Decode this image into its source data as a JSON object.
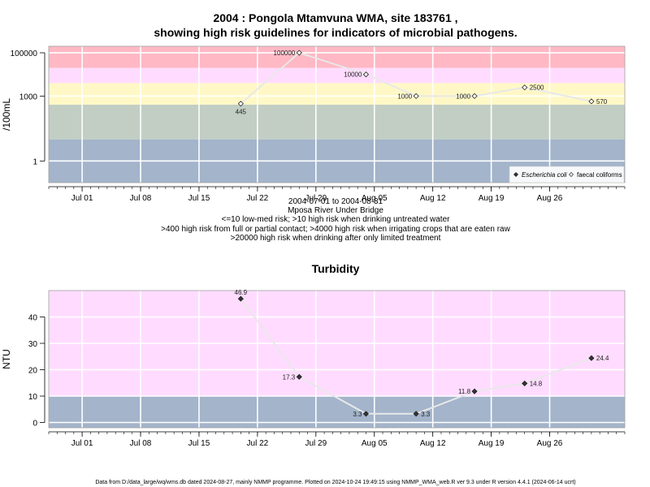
{
  "chart_data": [
    {
      "type": "scatter",
      "title_line1": "2004 : Pongola Mtamvuna WMA, site 183761 ,",
      "title_line2": "showing high risk guidelines for indicators of microbial pathogens.",
      "ylabel": "/100mL",
      "log_y": true,
      "ylim": [
        0.1,
        200000
      ],
      "yticks": [
        1,
        1000,
        100000
      ],
      "ytick_labels": [
        "1",
        "1000",
        "100000"
      ],
      "xlim": [
        "2004-06-27",
        "2004-09-04"
      ],
      "xticks": [
        "2004-07-01",
        "2004-07-08",
        "2004-07-15",
        "2004-07-22",
        "2004-07-29",
        "2004-08-05",
        "2004-08-12",
        "2004-08-19",
        "2004-08-26"
      ],
      "xtick_labels": [
        "Jul 01",
        "Jul 08",
        "Jul 15",
        "Jul 22",
        "Jul 29",
        "Aug 05",
        "Aug 12",
        "Aug 19",
        "Aug 26"
      ],
      "grid": true,
      "bands": [
        {
          "from": 0.1,
          "to": 10,
          "color": "#a3b4cb"
        },
        {
          "from": 10,
          "to": 400,
          "color": "#c2cec4"
        },
        {
          "from": 400,
          "to": 4000,
          "color": "#fff8c6"
        },
        {
          "from": 4000,
          "to": 20000,
          "color": "#ffdcff"
        },
        {
          "from": 20000,
          "to": 200000,
          "color": "#ffb8c4"
        }
      ],
      "series": [
        {
          "name": "faecal coliforms",
          "marker": "open-diamond",
          "x": [
            "2004-07-20",
            "2004-07-27",
            "2004-08-04",
            "2004-08-10",
            "2004-08-17",
            "2004-08-23",
            "2004-08-31"
          ],
          "y": [
            445,
            100000,
            10000,
            1000,
            1000,
            2500,
            570
          ],
          "labels": [
            "445",
            "100000",
            "10000",
            "1000",
            "1000",
            "2500",
            "570"
          ]
        }
      ],
      "legend": {
        "position": "bottom-right",
        "entries": [
          "Escherichia coli",
          "faecal coliforms"
        ]
      },
      "caption": [
        "2004-07-01 to 2004-08-31",
        "Mposa River Under Bridge",
        "<=10 low-med risk; >10 high risk when drinking untreated water",
        ">400 high risk from full or partial contact; >4000 high risk when irrigating crops that are eaten raw",
        ">20000 high risk when drinking after only limited treatment"
      ]
    },
    {
      "type": "line",
      "title": "Turbidity",
      "ylabel": "NTU",
      "ylim": [
        -2,
        50
      ],
      "yticks": [
        0,
        10,
        20,
        30,
        40
      ],
      "ytick_labels": [
        "0",
        "10",
        "20",
        "30",
        "40"
      ],
      "xlim": [
        "2004-06-27",
        "2004-09-04"
      ],
      "xticks": [
        "2004-07-01",
        "2004-07-08",
        "2004-07-15",
        "2004-07-22",
        "2004-07-29",
        "2004-08-05",
        "2004-08-12",
        "2004-08-19",
        "2004-08-26"
      ],
      "xtick_labels": [
        "Jul 01",
        "Jul 08",
        "Jul 15",
        "Jul 22",
        "Jul 29",
        "Aug 05",
        "Aug 12",
        "Aug 19",
        "Aug 26"
      ],
      "grid": true,
      "bands": [
        {
          "from": -2,
          "to": 10,
          "color": "#a3b4cb"
        },
        {
          "from": 10,
          "to": 50,
          "color": "#ffdcff"
        }
      ],
      "series": [
        {
          "marker": "filled-diamond",
          "x": [
            "2004-07-20",
            "2004-07-27",
            "2004-08-04",
            "2004-08-10",
            "2004-08-17",
            "2004-08-23",
            "2004-08-31"
          ],
          "y": [
            46.9,
            17.3,
            3.3,
            3.3,
            11.8,
            14.8,
            24.4
          ],
          "labels": [
            "46.9",
            "17.3",
            "3.3",
            "3.3",
            "11.8",
            "14.8",
            "24.4"
          ]
        }
      ]
    }
  ],
  "footer": "Data from D:/data_large/wq/wms.db dated 2024-08-27, mainly NMMP programme. Plotted on 2024-10-24 19:49:15 using NMMP_WMA_web.R ver 9.3 under R version 4.4.1 (2024-06-14 ucrt)"
}
